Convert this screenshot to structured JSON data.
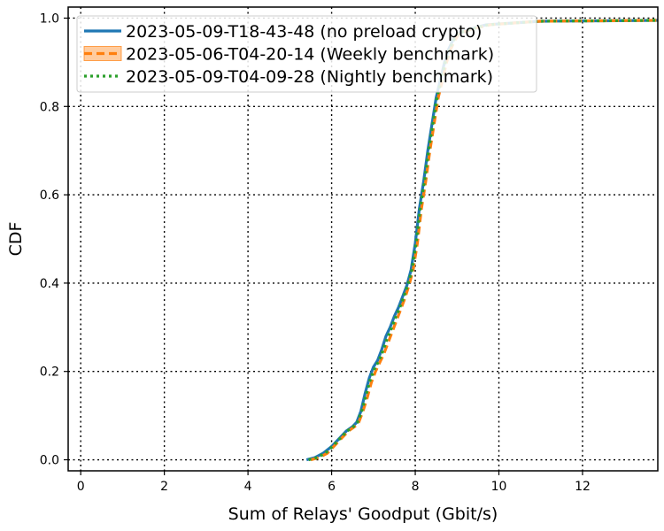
{
  "chart_data": {
    "type": "line",
    "title": "",
    "xlabel": "Sum of Relays' Goodput (Gbit/s)",
    "ylabel": "CDF",
    "xlim": [
      -0.3,
      13.8
    ],
    "ylim": [
      -0.025,
      1.025
    ],
    "xticks": [
      0,
      2,
      4,
      6,
      8,
      10,
      12
    ],
    "yticks": [
      0.0,
      0.2,
      0.4,
      0.6,
      0.8,
      1.0
    ],
    "xtick_labels": [
      "0",
      "2",
      "4",
      "6",
      "8",
      "10",
      "12"
    ],
    "ytick_labels": [
      "0.0",
      "0.2",
      "0.4",
      "0.6",
      "0.8",
      "1.0"
    ],
    "grid": true,
    "legend_position": "upper-left",
    "series": [
      {
        "name": "2023-05-09-T18-43-48 (no preload crypto)",
        "color": "#1f77b4",
        "style": "solid",
        "points": [
          [
            5.4,
            0.0
          ],
          [
            5.6,
            0.005
          ],
          [
            5.8,
            0.015
          ],
          [
            6.0,
            0.03
          ],
          [
            6.2,
            0.05
          ],
          [
            6.35,
            0.065
          ],
          [
            6.5,
            0.075
          ],
          [
            6.6,
            0.085
          ],
          [
            6.7,
            0.11
          ],
          [
            6.8,
            0.15
          ],
          [
            6.9,
            0.185
          ],
          [
            7.0,
            0.21
          ],
          [
            7.1,
            0.225
          ],
          [
            7.2,
            0.25
          ],
          [
            7.3,
            0.28
          ],
          [
            7.4,
            0.3
          ],
          [
            7.5,
            0.325
          ],
          [
            7.6,
            0.345
          ],
          [
            7.7,
            0.37
          ],
          [
            7.8,
            0.395
          ],
          [
            7.9,
            0.43
          ],
          [
            8.0,
            0.49
          ],
          [
            8.05,
            0.53
          ],
          [
            8.1,
            0.57
          ],
          [
            8.2,
            0.63
          ],
          [
            8.3,
            0.7
          ],
          [
            8.4,
            0.76
          ],
          [
            8.5,
            0.82
          ],
          [
            8.6,
            0.86
          ],
          [
            8.7,
            0.9
          ],
          [
            8.8,
            0.93
          ],
          [
            8.9,
            0.95
          ],
          [
            9.0,
            0.965
          ],
          [
            9.3,
            0.975
          ],
          [
            9.7,
            0.985
          ],
          [
            10.5,
            0.99
          ],
          [
            11.0,
            0.993
          ],
          [
            12.5,
            0.994
          ],
          [
            13.8,
            0.995
          ]
        ]
      },
      {
        "name": "2023-05-06-T04-20-14 (Weekly benchmark)",
        "color": "#ff7f0e",
        "style": "dashed",
        "points": [
          [
            5.5,
            0.0
          ],
          [
            5.7,
            0.005
          ],
          [
            5.9,
            0.015
          ],
          [
            6.05,
            0.03
          ],
          [
            6.25,
            0.05
          ],
          [
            6.4,
            0.065
          ],
          [
            6.55,
            0.075
          ],
          [
            6.65,
            0.085
          ],
          [
            6.75,
            0.11
          ],
          [
            6.85,
            0.14
          ],
          [
            6.95,
            0.175
          ],
          [
            7.05,
            0.2
          ],
          [
            7.15,
            0.22
          ],
          [
            7.25,
            0.24
          ],
          [
            7.35,
            0.265
          ],
          [
            7.45,
            0.29
          ],
          [
            7.55,
            0.315
          ],
          [
            7.65,
            0.34
          ],
          [
            7.75,
            0.365
          ],
          [
            7.85,
            0.395
          ],
          [
            7.95,
            0.43
          ],
          [
            8.05,
            0.49
          ],
          [
            8.1,
            0.53
          ],
          [
            8.15,
            0.57
          ],
          [
            8.25,
            0.63
          ],
          [
            8.35,
            0.7
          ],
          [
            8.45,
            0.76
          ],
          [
            8.55,
            0.82
          ],
          [
            8.65,
            0.86
          ],
          [
            8.75,
            0.9
          ],
          [
            8.85,
            0.93
          ],
          [
            8.95,
            0.95
          ],
          [
            9.05,
            0.965
          ],
          [
            9.35,
            0.975
          ],
          [
            9.8,
            0.985
          ],
          [
            10.5,
            0.99
          ],
          [
            11.0,
            0.993
          ],
          [
            12.5,
            0.994
          ],
          [
            13.8,
            0.995
          ]
        ]
      },
      {
        "name": "2023-05-09-T04-09-28 (Nightly benchmark)",
        "color": "#2ca02c",
        "style": "dotted",
        "points": [
          [
            5.45,
            0.0
          ],
          [
            5.65,
            0.005
          ],
          [
            5.85,
            0.015
          ],
          [
            6.02,
            0.03
          ],
          [
            6.22,
            0.05
          ],
          [
            6.37,
            0.065
          ],
          [
            6.52,
            0.075
          ],
          [
            6.62,
            0.085
          ],
          [
            6.72,
            0.11
          ],
          [
            6.82,
            0.145
          ],
          [
            6.92,
            0.18
          ],
          [
            7.02,
            0.205
          ],
          [
            7.12,
            0.222
          ],
          [
            7.22,
            0.245
          ],
          [
            7.32,
            0.272
          ],
          [
            7.42,
            0.295
          ],
          [
            7.52,
            0.32
          ],
          [
            7.62,
            0.342
          ],
          [
            7.72,
            0.367
          ],
          [
            7.82,
            0.395
          ],
          [
            7.92,
            0.43
          ],
          [
            8.02,
            0.49
          ],
          [
            8.07,
            0.53
          ],
          [
            8.12,
            0.57
          ],
          [
            8.22,
            0.63
          ],
          [
            8.32,
            0.7
          ],
          [
            8.42,
            0.76
          ],
          [
            8.52,
            0.82
          ],
          [
            8.62,
            0.86
          ],
          [
            8.72,
            0.9
          ],
          [
            8.82,
            0.93
          ],
          [
            8.92,
            0.95
          ],
          [
            9.02,
            0.965
          ],
          [
            9.32,
            0.975
          ],
          [
            9.75,
            0.985
          ],
          [
            10.5,
            0.99
          ],
          [
            11.0,
            0.993
          ],
          [
            12.5,
            0.994
          ],
          [
            13.8,
            0.995
          ]
        ]
      }
    ]
  }
}
